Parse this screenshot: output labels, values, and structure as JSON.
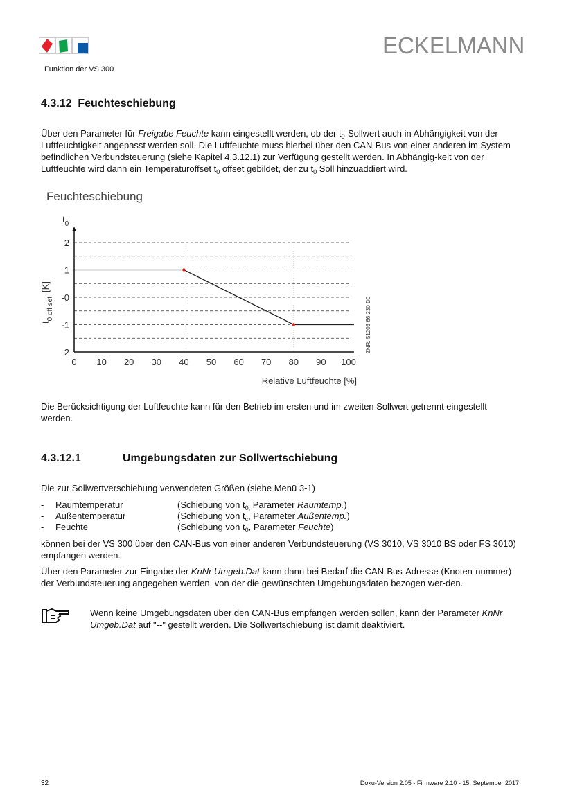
{
  "header": {
    "brand": "ECKELMANN",
    "subtitle": "Funktion der VS 300",
    "logo_colors": [
      "#e3202a",
      "#10a24a",
      "#0b5aa8"
    ]
  },
  "section": {
    "number": "4.3.12",
    "title": "Feuchteschiebung",
    "intro": [
      "Über den Parameter für ",
      "Freigabe Feuchte",
      " kann eingestellt werden, ob der t",
      "0",
      "-Sollwert auch in Abhängigkeit von der Luftfeuchtigkeit angepasst werden soll. Die Luftfeuchte muss hierbei über den CAN-Bus von einer anderen im System befindlichen Verbundsteuerung (siehe Kapitel 4.3.12.1) zur Verfügung gestellt werden. In Abhängig-keit von der Luftfeuchte wird dann ein Temperaturoffset t",
      "0",
      " offset gebildet, der zu t",
      "0",
      " Soll hinzuaddiert wird."
    ],
    "after_chart": "Die Berücksichtigung der Luftfeuchte kann für den Betrieb im ersten und im zweiten Sollwert getrennt eingestellt werden."
  },
  "chart_data": {
    "type": "line",
    "title": "Feuchteschiebung",
    "xlabel": "Relative Luftfeuchte [%]",
    "ylabel": {
      "main": "t",
      "sub": "0 off set",
      "unit": "[K]"
    },
    "y_axis_top_label": {
      "main": "t",
      "sub": "0"
    },
    "xlim": [
      0,
      100
    ],
    "ylim": [
      -2,
      2
    ],
    "x_ticks": [
      "0",
      "10",
      "20",
      "30",
      "40",
      "50",
      "60",
      "70",
      "80",
      "90",
      "100"
    ],
    "y_ticks": [
      "2",
      "1",
      "-0",
      "-1",
      "-2"
    ],
    "grid": "dashed horizontal every 0.5",
    "series": [
      {
        "x": [
          0,
          40,
          80,
          102
        ],
        "y": [
          1,
          1,
          -1,
          -1
        ]
      }
    ],
    "markers": [
      {
        "x": 40,
        "y": 1
      },
      {
        "x": 80,
        "y": -1
      }
    ],
    "marker_color": "#e8221b",
    "side_note": "ZNR. 51203 66 230 D0"
  },
  "subsection": {
    "number": "4.3.12.1",
    "title": "Umgebungsdaten zur Sollwertschiebung",
    "lead": "Die zur Sollwertverschiebung verwendeten Größen (siehe Menü 3-1)",
    "items": [
      {
        "dash": "-",
        "name": "Raumtemperatur",
        "desc": [
          "(Schiebung von t",
          "0,",
          " Parameter ",
          "Raumtemp.",
          ")"
        ]
      },
      {
        "dash": "-",
        "name": "Außentemperatur",
        "desc": [
          "(Schiebung von t",
          "c",
          ", Parameter ",
          "Außentemp.",
          ")"
        ]
      },
      {
        "dash": "-",
        "name": "Feuchte",
        "desc": [
          "(Schiebung von t",
          "0",
          ", Parameter ",
          "Feuchte",
          ")"
        ]
      }
    ],
    "para1": "können bei der VS 300 über den CAN-Bus von einer anderen Verbundsteuerung (VS 3010, VS 3010 BS oder FS 3010) empfangen werden.",
    "para2": [
      "Über den Parameter zur Eingabe der ",
      "KnNr Umgeb.Dat",
      " kann dann bei Bedarf die CAN-Bus-Adresse (Knoten-nummer) der Verbundsteuerung angegeben werden, von der die gewünschten Umgebungsdaten bezogen wer-den."
    ],
    "note": [
      "Wenn keine Umgebungsdaten über den CAN-Bus empfangen werden sollen, kann der Parameter ",
      "KnNr Umgeb.Dat",
      " auf \"--\" gestellt werden. Die Sollwertschiebung ist damit deaktiviert."
    ],
    "note_icon": "pointing-hand-icon"
  },
  "footer": {
    "page": "32",
    "version": "Doku-Version 2.05 - Firmware 2.10 - 15. September 2017"
  }
}
